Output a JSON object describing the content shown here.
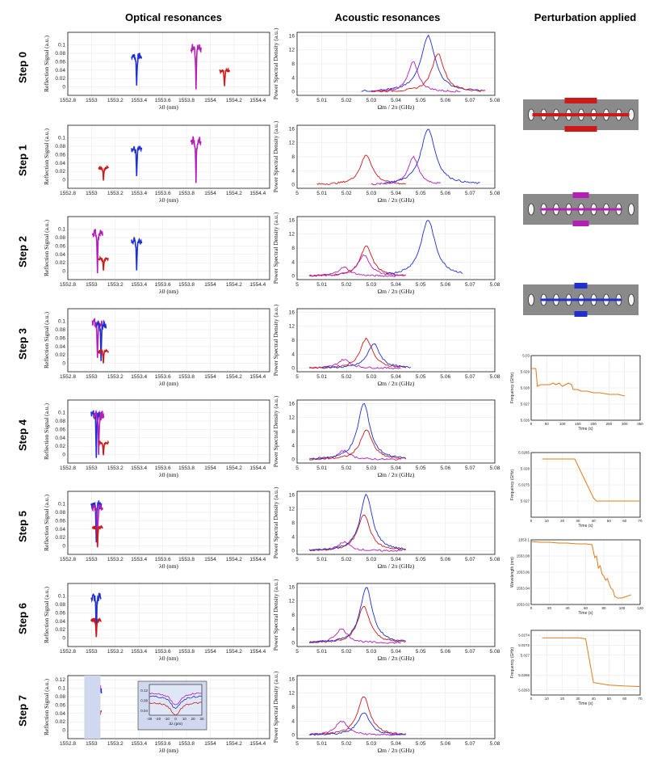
{
  "headers": {
    "optical": "Optical resonances",
    "acoustic": "Acoustic resonances",
    "perturbation": "Perturbation applied"
  },
  "steps": [
    "Step 0",
    "Step 1",
    "Step 2",
    "Step 3",
    "Step 4",
    "Step 5",
    "Step 6",
    "Step 7"
  ],
  "colors": {
    "blue": "#1f2fd0",
    "red": "#cc1a1a",
    "magenta": "#b51fb8",
    "orange": "#e07b1a"
  },
  "chart_data": {
    "optical": {
      "type": "line",
      "ylabel": "Reflection Signal (a.u.)",
      "xlabel": "λ0 (nm)",
      "xlim": [
        1552.8,
        1554.5
      ],
      "ylim": [
        -0.02,
        0.13
      ],
      "xticks": [
        "1552.8",
        "1553",
        "1553.2",
        "1553.4",
        "1553.6",
        "1553.8",
        "1554",
        "1554.2",
        "1554.4"
      ],
      "yticks": [
        "0",
        "0.02",
        "0.04",
        "0.06",
        "0.08",
        "0.1"
      ],
      "yticks7": [
        "0",
        "0.02",
        "0.04",
        "0.06",
        "0.08",
        "0.1",
        "0.12"
      ],
      "panels": [
        [
          {
            "c": "blue",
            "x0": 1553.38,
            "top": 0.075,
            "depth": 0.0
          },
          {
            "c": "magenta",
            "x0": 1553.88,
            "top": 0.095,
            "depth": 0.0
          },
          {
            "c": "red",
            "x0": 1554.12,
            "top": 0.04,
            "depth": 0.0
          }
        ],
        [
          {
            "c": "red",
            "x0": 1553.1,
            "top": 0.03,
            "depth": 0.0
          },
          {
            "c": "blue",
            "x0": 1553.38,
            "top": 0.075,
            "depth": 0.0
          },
          {
            "c": "magenta",
            "x0": 1553.88,
            "top": 0.095,
            "depth": 0.0
          }
        ],
        [
          {
            "c": "magenta",
            "x0": 1553.05,
            "top": 0.095,
            "depth": 0.0
          },
          {
            "c": "red",
            "x0": 1553.1,
            "top": 0.03,
            "depth": 0.0
          },
          {
            "c": "blue",
            "x0": 1553.38,
            "top": 0.075,
            "depth": 0.0
          }
        ],
        [
          {
            "c": "magenta",
            "x0": 1553.05,
            "top": 0.1,
            "depth": 0.0
          },
          {
            "c": "blue",
            "x0": 1553.08,
            "top": 0.095,
            "depth": 0.0
          },
          {
            "c": "red",
            "x0": 1553.1,
            "top": 0.03,
            "depth": 0.0
          }
        ],
        [
          {
            "c": "blue",
            "x0": 1553.04,
            "top": 0.1,
            "depth": 0.0
          },
          {
            "c": "magenta",
            "x0": 1553.06,
            "top": 0.095,
            "depth": 0.0
          },
          {
            "c": "red",
            "x0": 1553.1,
            "top": 0.03,
            "depth": 0.0
          }
        ],
        [
          {
            "c": "blue",
            "x0": 1553.04,
            "top": 0.1,
            "depth": 0.0
          },
          {
            "c": "magenta",
            "x0": 1553.05,
            "top": 0.095,
            "depth": 0.0
          },
          {
            "c": "red",
            "x0": 1553.05,
            "top": 0.045,
            "depth": 0.0
          }
        ],
        [
          {
            "c": "blue",
            "x0": 1553.04,
            "top": 0.1,
            "depth": 0.0
          },
          {
            "c": "red",
            "x0": 1553.04,
            "top": 0.045,
            "depth": 0.0
          }
        ],
        [
          {
            "c": "magenta",
            "x0": 1553.04,
            "top": 0.105,
            "depth": 0.0
          },
          {
            "c": "blue",
            "x0": 1553.04,
            "top": 0.1,
            "depth": 0.0
          },
          {
            "c": "red",
            "x0": 1553.04,
            "top": 0.045,
            "depth": 0.0
          }
        ]
      ],
      "inset": {
        "xlabel": "Δλ (pm)",
        "xticks": [
          "-30",
          "-20",
          "-10",
          "0",
          "10",
          "20",
          "30"
        ],
        "yticks": [
          "0.04",
          "0.08",
          "0.12"
        ]
      }
    },
    "acoustic": {
      "type": "line",
      "ylabel": "Power Spectral Density (a.u.)",
      "xlabel": "Ωm / 2π (GHz)",
      "xlim": [
        5.0,
        5.08
      ],
      "ylim": [
        -1,
        17
      ],
      "xticks": [
        "5",
        "5.01",
        "5.02",
        "5.03",
        "5.04",
        "5.05",
        "5.06",
        "5.07",
        "5.08"
      ],
      "yticks": [
        "0",
        "4",
        "8",
        "12",
        "16"
      ],
      "panels": [
        [
          {
            "c": "blue",
            "f0": 5.053,
            "A": 16,
            "w": 0.0035,
            "xmin": 5.026,
            "xmax": 5.076
          },
          {
            "c": "magenta",
            "f0": 5.047,
            "A": 8.5,
            "w": 0.0025,
            "xmin": 5.03,
            "xmax": 5.066
          },
          {
            "c": "red",
            "f0": 5.057,
            "A": 11,
            "w": 0.003,
            "xmin": 5.03,
            "xmax": 5.076
          }
        ],
        [
          {
            "c": "red",
            "f0": 5.028,
            "A": 8.5,
            "w": 0.003,
            "xmin": 5.008,
            "xmax": 5.044
          },
          {
            "c": "magenta",
            "f0": 5.047,
            "A": 8,
            "w": 0.0025,
            "xmin": 5.03,
            "xmax": 5.058
          },
          {
            "c": "blue",
            "f0": 5.053,
            "A": 16,
            "w": 0.0035,
            "xmin": 5.035,
            "xmax": 5.074
          }
        ],
        [
          {
            "c": "magenta",
            "f0": 5.019,
            "A": 2.5,
            "w": 0.003,
            "xmin": 5.005,
            "xmax": 5.04
          },
          {
            "c": "red",
            "f0": 5.028,
            "A": 8.5,
            "w": 0.003,
            "xmin": 5.005,
            "xmax": 5.044
          },
          {
            "c": "magenta",
            "f0": 5.027,
            "A": 6,
            "w": 0.003,
            "xmin": 5.005,
            "xmax": 5.044
          },
          {
            "c": "blue",
            "f0": 5.053,
            "A": 16,
            "w": 0.0035,
            "xmin": 5.036,
            "xmax": 5.067
          }
        ],
        [
          {
            "c": "magenta",
            "f0": 5.019,
            "A": 2.5,
            "w": 0.003,
            "xmin": 5.005,
            "xmax": 5.042
          },
          {
            "c": "red",
            "f0": 5.028,
            "A": 8.5,
            "w": 0.003,
            "xmin": 5.005,
            "xmax": 5.044
          },
          {
            "c": "blue",
            "f0": 5.031,
            "A": 7,
            "w": 0.003,
            "xmin": 5.01,
            "xmax": 5.046
          }
        ],
        [
          {
            "c": "magenta",
            "f0": 5.019,
            "A": 2.5,
            "w": 0.003,
            "xmin": 5.005,
            "xmax": 5.042
          },
          {
            "c": "red",
            "f0": 5.028,
            "A": 8.5,
            "w": 0.003,
            "xmin": 5.005,
            "xmax": 5.044
          },
          {
            "c": "blue",
            "f0": 5.027,
            "A": 16,
            "w": 0.003,
            "xmin": 5.005,
            "xmax": 5.044
          }
        ],
        [
          {
            "c": "magenta",
            "f0": 5.019,
            "A": 2.5,
            "w": 0.003,
            "xmin": 5.005,
            "xmax": 5.042
          },
          {
            "c": "red",
            "f0": 5.027,
            "A": 10.5,
            "w": 0.003,
            "xmin": 5.005,
            "xmax": 5.044
          },
          {
            "c": "blue",
            "f0": 5.028,
            "A": 16,
            "w": 0.003,
            "xmin": 5.005,
            "xmax": 5.044
          }
        ],
        [
          {
            "c": "magenta",
            "f0": 5.018,
            "A": 4,
            "w": 0.003,
            "xmin": 5.005,
            "xmax": 5.042
          },
          {
            "c": "red",
            "f0": 5.027,
            "A": 10.5,
            "w": 0.003,
            "xmin": 5.005,
            "xmax": 5.044
          },
          {
            "c": "blue",
            "f0": 5.028,
            "A": 16,
            "w": 0.003,
            "xmin": 5.005,
            "xmax": 5.044
          }
        ],
        [
          {
            "c": "magenta",
            "f0": 5.018,
            "A": 4,
            "w": 0.003,
            "xmin": 5.005,
            "xmax": 5.042
          },
          {
            "c": "red",
            "f0": 5.027,
            "A": 11,
            "w": 0.003,
            "xmin": 5.005,
            "xmax": 5.044
          },
          {
            "c": "blue",
            "f0": 5.027,
            "A": 6.5,
            "w": 0.003,
            "xmin": 5.005,
            "xmax": 5.044
          }
        ]
      ]
    },
    "perturbation_plots": [
      {
        "ylabel": "Frequency (GHz)",
        "xlabel": "Time (s)",
        "xlim": [
          0,
          350
        ],
        "ylim": [
          5.026,
          5.03
        ],
        "xticks": [
          "0",
          "50",
          "100",
          "150",
          "200",
          "250",
          "300",
          "350"
        ],
        "yticks": [
          "5.026",
          "5.027",
          "5.028",
          "5.029",
          "5.03"
        ],
        "x": [
          0,
          15,
          20,
          30,
          60,
          70,
          80,
          90,
          100,
          110,
          120,
          130,
          135,
          150,
          160,
          180,
          200,
          220,
          250,
          280,
          300
        ],
        "y": [
          5.0292,
          5.0292,
          5.0281,
          5.0282,
          5.0282,
          5.0283,
          5.0282,
          5.0283,
          5.0281,
          5.0282,
          5.0283,
          5.0282,
          5.0279,
          5.0279,
          5.0278,
          5.0278,
          5.0277,
          5.0277,
          5.0276,
          5.0276,
          5.0275
        ]
      },
      {
        "ylabel": "Frequency (GHz)",
        "xlabel": "Time (s)",
        "xlim": [
          0,
          70
        ],
        "ylim": [
          5.0265,
          5.0285
        ],
        "xticks": [
          "0",
          "10",
          "20",
          "30",
          "40",
          "50",
          "60",
          "70"
        ],
        "yticks": [
          "5.027",
          "5.0275",
          "5.028",
          "5.0285"
        ],
        "x": [
          7,
          10,
          20,
          28,
          30,
          40,
          42,
          50,
          60,
          70
        ],
        "y": [
          5.0283,
          5.0283,
          5.0283,
          5.0283,
          5.0281,
          5.0271,
          5.027,
          5.027,
          5.027,
          5.027
        ]
      },
      {
        "ylabel": "Wavelength (nm)",
        "xlabel": "Time (s)",
        "xlim": [
          0,
          120
        ],
        "ylim": [
          1553.02,
          1553.1
        ],
        "xticks": [
          "0",
          "20",
          "40",
          "60",
          "80",
          "100",
          "120"
        ],
        "yticks": [
          "1553.02",
          "1553.04",
          "1553.06",
          "1553.08",
          "1553.1"
        ],
        "x": [
          0,
          10,
          20,
          30,
          40,
          50,
          60,
          67,
          70,
          72,
          74,
          76,
          78,
          80,
          82,
          84,
          86,
          88,
          90,
          92,
          95,
          100,
          105,
          110
        ],
        "y": [
          1553.098,
          1553.097,
          1553.097,
          1553.096,
          1553.096,
          1553.095,
          1553.095,
          1553.094,
          1553.078,
          1553.08,
          1553.065,
          1553.068,
          1553.058,
          1553.055,
          1553.05,
          1553.052,
          1553.045,
          1553.04,
          1553.038,
          1553.03,
          1553.028,
          1553.028,
          1553.03,
          1553.032
        ]
      },
      {
        "ylabel": "Frequency (GHz)",
        "xlabel": "Time (s)",
        "xlim": [
          0,
          70
        ],
        "ylim": [
          5.0262,
          5.0275
        ],
        "xticks": [
          "0",
          "10",
          "20",
          "30",
          "40",
          "50",
          "60",
          "70"
        ],
        "yticks": [
          "5.0263",
          "5.0266",
          "5.027",
          "5.0272",
          "5.0274"
        ],
        "x": [
          7,
          10,
          20,
          30,
          35,
          40,
          50,
          60,
          70
        ],
        "y": [
          5.02735,
          5.02735,
          5.02735,
          5.02735,
          5.02733,
          5.02645,
          5.0264,
          5.02638,
          5.02637
        ]
      }
    ]
  }
}
